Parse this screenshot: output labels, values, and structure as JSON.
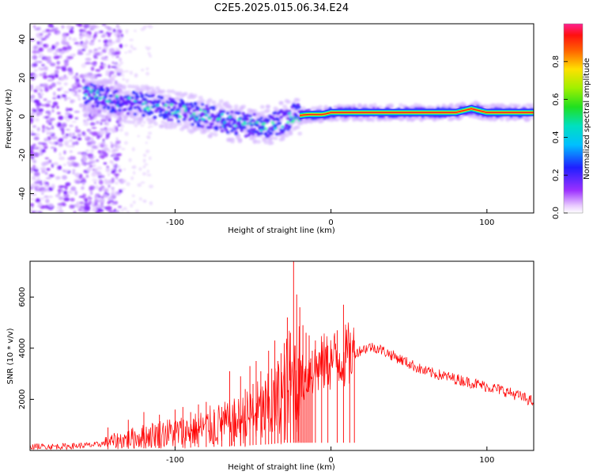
{
  "figure": {
    "title": "C2E5.2025.015.06.34.E24"
  },
  "chart_data": [
    {
      "type": "heatmap",
      "name": "spectrogram",
      "xlabel": "Height of straight line (km)",
      "ylabel": "Frequency (Hz)",
      "xlim": [
        -193,
        130
      ],
      "ylim": [
        -50,
        48
      ],
      "xticks": [
        -100,
        0,
        100
      ],
      "yticks": [
        -40,
        -20,
        0,
        20,
        40
      ],
      "colorbar": {
        "label": "Normalized spectral amplitude",
        "range": [
          0,
          1
        ],
        "ticks": [
          0.0,
          0.2,
          0.4,
          0.6,
          0.8
        ],
        "tick_labels": [
          "0.0",
          "0.2",
          "0.4",
          "0.6",
          "0.8"
        ],
        "colormap": "rainbow (white-purple-blue-cyan-green-yellow-red-magenta)"
      },
      "ridge": {
        "description": "dominant frequency track",
        "x": [
          -155,
          -140,
          -120,
          -100,
          -80,
          -60,
          -45,
          -35,
          -25,
          -15,
          -5,
          0,
          10,
          40,
          80,
          90,
          100,
          130
        ],
        "y": [
          12,
          8,
          6,
          3,
          0,
          -4,
          -5,
          -4,
          0,
          1,
          1,
          2,
          2,
          2,
          2,
          4,
          2,
          2
        ]
      },
      "noise_region": {
        "x_range": [
          -193,
          -140
        ],
        "note": "broadband scattered low amplitude"
      }
    },
    {
      "type": "line",
      "name": "snr",
      "xlabel": "Height of straight line (km)",
      "ylabel": "SNR (10 * v/v)",
      "xlim": [
        -193,
        130
      ],
      "ylim": [
        0,
        7400
      ],
      "xticks": [
        -100,
        0,
        100
      ],
      "yticks": [
        2000,
        4000,
        6000
      ],
      "color": "#ff0000",
      "series": [
        {
          "x": [
            -193,
            -170,
            -150,
            -140,
            -130,
            -120,
            -110,
            -100,
            -90,
            -80,
            -70,
            -60,
            -55,
            -50,
            -45,
            -40,
            -35,
            -30,
            -27,
            -25,
            -22,
            -20,
            -15,
            -10,
            -5,
            0,
            5,
            10,
            15,
            20,
            25,
            30,
            40,
            50,
            60,
            70,
            80,
            90,
            100,
            110,
            120,
            130
          ],
          "y": [
            150,
            160,
            220,
            350,
            450,
            550,
            650,
            700,
            750,
            900,
            1000,
            1100,
            1200,
            1400,
            1500,
            1600,
            1800,
            2200,
            2600,
            2400,
            2800,
            2700,
            3000,
            3200,
            3400,
            3500,
            3600,
            3700,
            3800,
            3950,
            4050,
            4000,
            3700,
            3400,
            3100,
            2950,
            2800,
            2650,
            2500,
            2350,
            2150,
            1900
          ]
        }
      ],
      "spikes": {
        "x": [
          -143,
          -130,
          -120,
          -110,
          -100,
          -95,
          -90,
          -85,
          -80,
          -75,
          -70,
          -65,
          -62,
          -58,
          -55,
          -52,
          -50,
          -48,
          -45,
          -42,
          -40,
          -38,
          -36,
          -34,
          -32,
          -30,
          -28,
          -26,
          -24,
          -23,
          -22,
          -21,
          -20,
          -19,
          -18,
          -17,
          -16,
          -15,
          -14,
          -13,
          -12,
          -10,
          -6,
          -2,
          4,
          8,
          12,
          15
        ],
        "y": [
          900,
          1200,
          1500,
          1400,
          1600,
          1700,
          1500,
          1800,
          1900,
          1600,
          1700,
          3100,
          1900,
          2900,
          2400,
          3300,
          2600,
          3500,
          3100,
          2700,
          3900,
          3200,
          4300,
          3500,
          3800,
          4200,
          5200,
          4600,
          7400,
          4100,
          6100,
          3600,
          5600,
          3300,
          4900,
          3100,
          4600,
          3200,
          4500,
          3600,
          3900,
          4300,
          3900,
          4100,
          4700,
          5700,
          4200,
          4300
        ]
      }
    }
  ]
}
